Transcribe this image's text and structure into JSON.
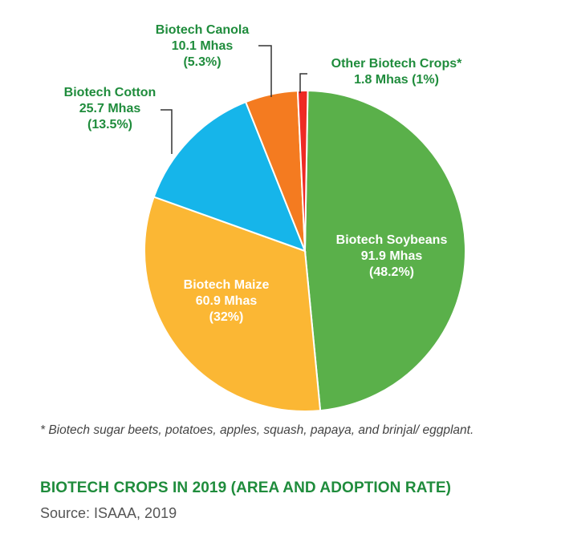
{
  "chart_data": {
    "type": "pie",
    "title": "BIOTECH CROPS IN 2019 (AREA AND ADOPTION RATE)",
    "source": "Source: ISAAA, 2019",
    "footnote": "* Biotech sugar beets, potatoes, apples, squash, papaya, and brinjal/ eggplant.",
    "slices": [
      {
        "name": "Biotech Soybeans",
        "value_text": "91.9 Mhas",
        "pct_text": "(48.2%)",
        "value": 91.9,
        "percent": 48.2,
        "color": "#5ab04a",
        "label_color": "#ffffff"
      },
      {
        "name": "Biotech Maize",
        "value_text": "60.9 Mhas",
        "pct_text": "(32%)",
        "value": 60.9,
        "percent": 32.0,
        "color": "#fbb734",
        "label_color": "#ffffff"
      },
      {
        "name": "Biotech Cotton",
        "value_text": "25.7 Mhas",
        "pct_text": "(13.5%)",
        "value": 25.7,
        "percent": 13.5,
        "color": "#16b5ea",
        "label_color": "#1f8c3c"
      },
      {
        "name": "Biotech Canola",
        "value_text": "10.1 Mhas",
        "pct_text": "(5.3%)",
        "value": 10.1,
        "percent": 5.3,
        "color": "#f47b20",
        "label_color": "#1f8c3c"
      },
      {
        "name": "Other Biotech Crops*",
        "value_text": "1.8 Mhas (1%)",
        "pct_text": "",
        "value": 1.8,
        "percent": 1.0,
        "color": "#ee2a24",
        "label_color": "#1f8c3c"
      }
    ]
  }
}
